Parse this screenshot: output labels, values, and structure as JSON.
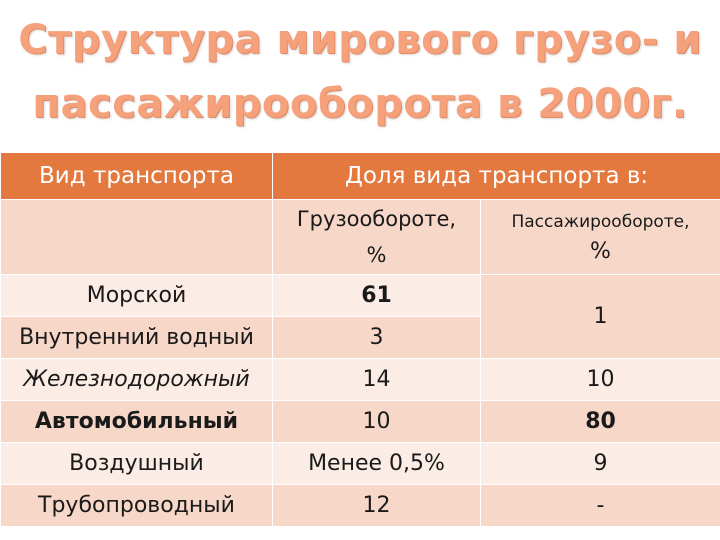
{
  "title": {
    "line1": "Структура мирового грузо- и",
    "line2": "пассажирооборота в  2000г."
  },
  "table": {
    "header": {
      "col1": "Вид транспорта",
      "col23": "Доля  вида транспорта в:"
    },
    "subheader": {
      "cargo_line1": "Грузообороте,",
      "cargo_line2": "%",
      "passenger_line1": "Пассажирообороте,",
      "passenger_line2": "%"
    },
    "rows": [
      {
        "name": "Морской",
        "cargo": "61",
        "passenger": "1"
      },
      {
        "name": "Внутренний водный",
        "cargo": "3",
        "passenger": ""
      },
      {
        "name": "Железнодорожный",
        "cargo": "14",
        "passenger": "10"
      },
      {
        "name": "Автомобильный",
        "cargo": "10",
        "passenger": "80"
      },
      {
        "name": "Воздушный",
        "cargo": "Менее 0,5%",
        "passenger": "9"
      },
      {
        "name": "Трубопроводный",
        "cargo": "12",
        "passenger": "-"
      }
    ]
  },
  "colors": {
    "title": "#f4a17c",
    "header_bg": "#e3793f",
    "row_dark": "#f6d7c8",
    "row_light": "#fbece5"
  }
}
